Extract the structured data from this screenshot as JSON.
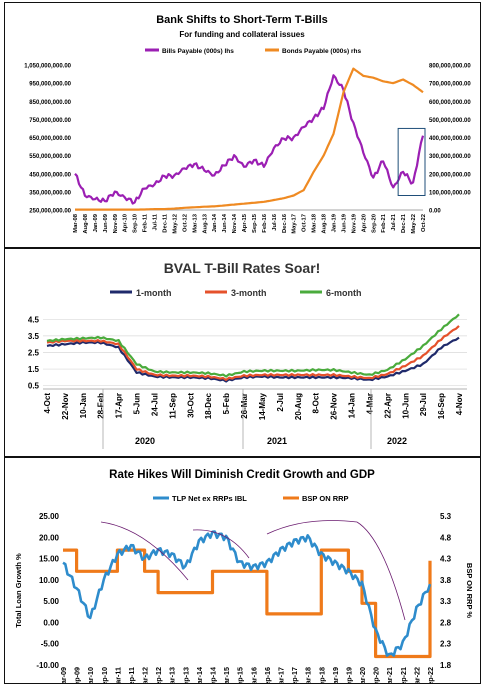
{
  "chart_data": [
    {
      "type": "line",
      "title": "Bank Shifts to Short-Term T-Bills",
      "subtitle": "For funding and collateral issues",
      "legend_position": "top-center",
      "x": [
        "Mar-08",
        "Aug-08",
        "Jan-09",
        "Jun-09",
        "Nov-09",
        "Apr-10",
        "Sep-10",
        "Feb-11",
        "Jul-11",
        "Dec-11",
        "May-12",
        "Oct-12",
        "Mar-13",
        "Aug-13",
        "Jan-14",
        "Jun-14",
        "Nov-14",
        "Apr-15",
        "Sep-15",
        "Feb-16",
        "Jul-16",
        "Dec-16",
        "May-17",
        "Oct-17",
        "Mar-18",
        "Aug-18",
        "Jan-19",
        "Jun-19",
        "Nov-19",
        "Apr-20",
        "Sep-20",
        "Feb-21",
        "Jul-21",
        "Dec-21",
        "May-22",
        "Oct-22"
      ],
      "left_axis": {
        "ticks": [
          "1,050,000,000.00",
          "950,000,000.00",
          "850,000,000.00",
          "750,000,000.00",
          "650,000,000.00",
          "550,000,000.00",
          "450,000,000.00",
          "350,000,000.00",
          "250,000,000.00"
        ],
        "ylim": [
          250000000,
          1050000000
        ]
      },
      "right_axis": {
        "ticks": [
          "800,000,000.00",
          "700,000,000.00",
          "600,000,000.00",
          "500,000,000.00",
          "400,000,000.00",
          "300,000,000.00",
          "200,000,000.00",
          "100,000,000.00",
          "0.00"
        ],
        "ylim": [
          0,
          800000000
        ]
      },
      "series": [
        {
          "name": "Bills Payable (000s) lhs",
          "color": "#9b1fb3",
          "axis": "left",
          "values": [
            450000000,
            340000000,
            320000000,
            300000000,
            340000000,
            310000000,
            290000000,
            380000000,
            400000000,
            440000000,
            430000000,
            470000000,
            500000000,
            480000000,
            450000000,
            500000000,
            540000000,
            480000000,
            520000000,
            500000000,
            600000000,
            650000000,
            640000000,
            700000000,
            750000000,
            820000000,
            1000000000,
            920000000,
            720000000,
            560000000,
            420000000,
            530000000,
            380000000,
            470000000,
            390000000,
            660000000
          ]
        },
        {
          "name": "Bonds Payable (000s) rhs",
          "color": "#ef8a22",
          "axis": "right",
          "values": [
            2000000,
            2000000,
            2000000,
            2000000,
            2000000,
            2000000,
            2000000,
            3000000,
            5000000,
            5000000,
            8000000,
            12000000,
            15000000,
            18000000,
            20000000,
            25000000,
            30000000,
            35000000,
            40000000,
            45000000,
            55000000,
            65000000,
            80000000,
            110000000,
            210000000,
            300000000,
            420000000,
            650000000,
            780000000,
            740000000,
            730000000,
            710000000,
            700000000,
            720000000,
            690000000,
            650000000
          ]
        }
      ],
      "annotation": "highlight-box around May-22 to Oct-22"
    },
    {
      "type": "line",
      "title": "BVAL T-Bill Rates Soar!",
      "legend_position": "top-center",
      "x": [
        "4-Oct",
        "22-Nov",
        "10-Jan",
        "28-Feb",
        "17-Apr",
        "5-Jun",
        "24-Jul",
        "11-Sep",
        "30-Oct",
        "18-Dec",
        "5-Feb",
        "26-Mar",
        "14-May",
        "2-Jul",
        "20-Aug",
        "8-Oct",
        "26-Nov",
        "14-Jan",
        "4-Mar",
        "22-Apr",
        "10-Jun",
        "29-Jul",
        "16-Sep",
        "4-Nov"
      ],
      "year_labels": [
        "2020",
        "2021",
        "2022"
      ],
      "y_ticks": [
        "4.5",
        "3.5",
        "2.5",
        "1.5",
        "0.5"
      ],
      "ylim": [
        0.3,
        5.0
      ],
      "grid": true,
      "series": [
        {
          "name": "1-month",
          "color": "#1f2a6b",
          "values": [
            2.9,
            3.0,
            3.1,
            3.1,
            2.8,
            1.3,
            1.05,
            1.0,
            1.0,
            0.95,
            0.8,
            1.0,
            1.05,
            1.0,
            1.0,
            1.0,
            1.0,
            0.95,
            0.85,
            1.05,
            1.4,
            1.8,
            2.8,
            3.4
          ]
        },
        {
          "name": "3-month",
          "color": "#e5512b",
          "values": [
            3.1,
            3.2,
            3.2,
            3.2,
            3.0,
            1.5,
            1.15,
            1.1,
            1.1,
            1.05,
            0.9,
            1.1,
            1.15,
            1.15,
            1.15,
            1.15,
            1.15,
            1.05,
            0.95,
            1.2,
            1.7,
            2.3,
            3.3,
            4.1
          ]
        },
        {
          "name": "6-month",
          "color": "#4aab3c",
          "values": [
            3.2,
            3.3,
            3.35,
            3.4,
            3.2,
            1.8,
            1.35,
            1.3,
            1.3,
            1.25,
            1.1,
            1.35,
            1.4,
            1.4,
            1.4,
            1.45,
            1.45,
            1.3,
            1.15,
            1.45,
            2.1,
            2.9,
            3.9,
            4.8
          ]
        }
      ]
    },
    {
      "type": "line",
      "title": "Rate Hikes Will Diminish Credit Growth and GDP",
      "legend_position": "top-center",
      "x": [
        "Mar-09",
        "Sep-09",
        "Mar-10",
        "Sep-10",
        "Mar-11",
        "Sep-11",
        "Mar-12",
        "Sep-12",
        "Mar-13",
        "Sep-13",
        "Mar-14",
        "Sep-14",
        "Mar-15",
        "Sep-15",
        "Mar-16",
        "Sep-16",
        "Mar-17",
        "Sep-17",
        "Mar-18",
        "Sep-18",
        "Mar-19",
        "Sep-19",
        "Mar-20",
        "Sep-20",
        "Mar-21",
        "Sep-21",
        "Mar-22",
        "Sep-22"
      ],
      "ylabel_left": "Total Loan Growth %",
      "ylabel_right": "BSP ON RRP %",
      "left_axis": {
        "ticks": [
          "25.00",
          "20.00",
          "15.00",
          "10.00",
          "5.00",
          "0.00",
          "-5.00",
          "-10.00"
        ],
        "ylim": [
          -10,
          25
        ]
      },
      "right_axis": {
        "ticks": [
          "5.3",
          "4.8",
          "4.3",
          "3.8",
          "3.3",
          "2.8",
          "2.3",
          "1.8"
        ],
        "ylim": [
          1.8,
          5.3
        ]
      },
      "series": [
        {
          "name": "TLP Net ex RRPs IBL",
          "color": "#2e8ccc",
          "axis": "left",
          "values": [
            14,
            8,
            1,
            10,
            16,
            18,
            15,
            17,
            16,
            13,
            19,
            21,
            20,
            14,
            13,
            14,
            17,
            19,
            20,
            16,
            14,
            12,
            9,
            -2,
            -8,
            -5,
            3,
            9
          ]
        },
        {
          "name": "BSP ON RRP",
          "color": "#ef7a1a",
          "axis": "right",
          "values": [
            4.5,
            4.0,
            4.0,
            4.0,
            4.5,
            4.5,
            4.0,
            3.5,
            3.5,
            3.5,
            3.5,
            4.0,
            4.0,
            4.0,
            4.0,
            3.0,
            3.0,
            3.0,
            3.0,
            4.5,
            4.5,
            4.0,
            3.25,
            2.0,
            2.0,
            2.0,
            2.0,
            4.25
          ]
        }
      ],
      "annotation": "purple trend arcs above peaks"
    }
  ]
}
